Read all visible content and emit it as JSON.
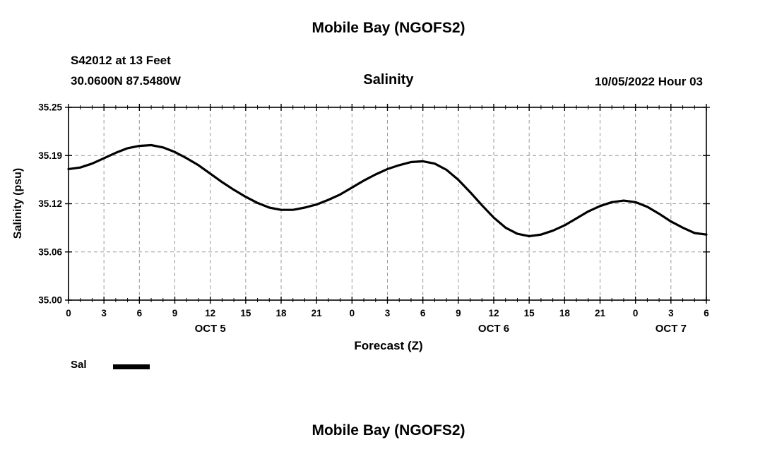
{
  "page": {
    "title_top": "Mobile Bay (NGOFS2)",
    "title_bottom": "Mobile Bay (NGOFS2)"
  },
  "header": {
    "station": "S42012 at 13 Feet",
    "coords": "30.0600N  87.5480W",
    "chart_title": "Salinity",
    "datetime": "10/05/2022 Hour 03"
  },
  "legend": {
    "label": "Sal",
    "color": "#000000"
  },
  "chart_data": {
    "type": "line",
    "title": "Salinity",
    "xlabel": "Forecast (Z)",
    "ylabel": "Salinity (psu)",
    "xlim": [
      0,
      54
    ],
    "ylim": [
      35.0,
      35.25
    ],
    "grid": "dashed",
    "legend_position": "bottom-left",
    "x_ticks": [
      {
        "v": 0,
        "label": "0"
      },
      {
        "v": 3,
        "label": "3"
      },
      {
        "v": 6,
        "label": "6"
      },
      {
        "v": 9,
        "label": "9"
      },
      {
        "v": 12,
        "label": "12"
      },
      {
        "v": 15,
        "label": "15"
      },
      {
        "v": 18,
        "label": "18"
      },
      {
        "v": 21,
        "label": "21"
      },
      {
        "v": 24,
        "label": "0"
      },
      {
        "v": 27,
        "label": "3"
      },
      {
        "v": 30,
        "label": "6"
      },
      {
        "v": 33,
        "label": "9"
      },
      {
        "v": 36,
        "label": "12"
      },
      {
        "v": 39,
        "label": "15"
      },
      {
        "v": 42,
        "label": "18"
      },
      {
        "v": 45,
        "label": "21"
      },
      {
        "v": 48,
        "label": "0"
      },
      {
        "v": 51,
        "label": "3"
      },
      {
        "v": 54,
        "label": "6"
      }
    ],
    "y_ticks": [
      {
        "v": 35.0,
        "label": "35.00"
      },
      {
        "v": 35.0625,
        "label": "35.06"
      },
      {
        "v": 35.125,
        "label": "35.12"
      },
      {
        "v": 35.1875,
        "label": "35.19"
      },
      {
        "v": 35.25,
        "label": "35.25"
      }
    ],
    "day_labels": [
      {
        "v": 12,
        "label": "OCT 5"
      },
      {
        "v": 36,
        "label": "OCT 6"
      },
      {
        "v": 51,
        "label": "OCT 7"
      }
    ],
    "series": [
      {
        "name": "Sal",
        "color": "#000000",
        "points": [
          [
            0,
            35.17
          ],
          [
            1,
            35.172
          ],
          [
            2,
            35.177
          ],
          [
            3,
            35.184
          ],
          [
            4,
            35.191
          ],
          [
            5,
            35.197
          ],
          [
            6,
            35.2
          ],
          [
            7,
            35.201
          ],
          [
            8,
            35.198
          ],
          [
            9,
            35.192
          ],
          [
            10,
            35.184
          ],
          [
            11,
            35.175
          ],
          [
            12,
            35.164
          ],
          [
            13,
            35.153
          ],
          [
            14,
            35.143
          ],
          [
            15,
            35.134
          ],
          [
            16,
            35.126
          ],
          [
            17,
            35.12
          ],
          [
            18,
            35.117
          ],
          [
            19,
            35.117
          ],
          [
            20,
            35.12
          ],
          [
            21,
            35.124
          ],
          [
            22,
            35.13
          ],
          [
            23,
            35.137
          ],
          [
            24,
            35.146
          ],
          [
            25,
            35.155
          ],
          [
            26,
            35.163
          ],
          [
            27,
            35.17
          ],
          [
            28,
            35.175
          ],
          [
            29,
            35.179
          ],
          [
            30,
            35.18
          ],
          [
            31,
            35.177
          ],
          [
            32,
            35.169
          ],
          [
            33,
            35.156
          ],
          [
            34,
            35.14
          ],
          [
            35,
            35.123
          ],
          [
            36,
            35.107
          ],
          [
            37,
            35.094
          ],
          [
            38,
            35.086
          ],
          [
            39,
            35.083
          ],
          [
            40,
            35.085
          ],
          [
            41,
            35.09
          ],
          [
            42,
            35.097
          ],
          [
            43,
            35.106
          ],
          [
            44,
            35.115
          ],
          [
            45,
            35.122
          ],
          [
            46,
            35.127
          ],
          [
            47,
            35.129
          ],
          [
            48,
            35.127
          ],
          [
            49,
            35.121
          ],
          [
            50,
            35.112
          ],
          [
            51,
            35.102
          ],
          [
            52,
            35.094
          ],
          [
            53,
            35.087
          ],
          [
            54,
            35.085
          ]
        ]
      }
    ]
  }
}
